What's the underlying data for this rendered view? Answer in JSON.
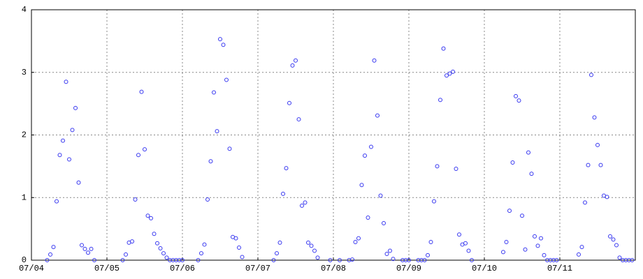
{
  "chart_data": {
    "type": "scatter",
    "x": [
      5,
      6,
      7,
      8,
      9,
      10,
      11,
      12,
      13,
      14,
      15,
      16,
      17,
      18,
      19,
      20,
      29,
      30,
      31,
      32,
      33,
      34,
      35,
      36,
      37,
      38,
      39,
      40,
      41,
      42,
      43,
      44,
      45,
      46,
      47,
      48,
      53,
      54,
      55,
      56,
      57,
      58,
      59,
      60,
      61,
      62,
      63,
      64,
      65,
      66,
      67,
      77,
      78,
      79,
      80,
      81,
      82,
      83,
      84,
      85,
      86,
      87,
      88,
      89,
      90,
      91,
      95,
      98,
      101,
      102,
      103,
      104,
      105,
      106,
      107,
      108,
      109,
      110,
      111,
      112,
      113,
      114,
      115,
      118,
      119,
      120,
      123,
      124,
      125,
      126,
      127,
      128,
      129,
      130,
      131,
      132,
      133,
      134,
      135,
      136,
      137,
      138,
      139,
      140,
      150,
      151,
      152,
      153,
      154,
      155,
      156,
      157,
      158,
      159,
      160,
      161,
      162,
      163,
      164,
      165,
      166,
      167,
      174,
      175,
      176,
      177,
      178,
      179,
      180,
      181,
      182,
      183,
      184,
      185,
      186,
      187,
      188,
      189,
      190,
      191
    ],
    "values": [
      0,
      0.09,
      0.21,
      0.94,
      1.68,
      1.91,
      2.85,
      1.61,
      2.08,
      2.43,
      1.24,
      0.24,
      0.18,
      0.12,
      0.18,
      0,
      0,
      0.09,
      0.28,
      0.3,
      0.97,
      1.68,
      2.69,
      1.77,
      0.71,
      0.67,
      0.42,
      0.27,
      0.19,
      0.11,
      0.04,
      0,
      0,
      0,
      0,
      0,
      0,
      0.11,
      0.25,
      0.97,
      1.58,
      2.68,
      2.06,
      3.53,
      3.44,
      2.88,
      1.78,
      0.37,
      0.35,
      0.2,
      0.05,
      0,
      0.11,
      0.28,
      1.06,
      1.47,
      2.51,
      3.11,
      3.19,
      2.25,
      0.87,
      0.92,
      0.28,
      0.23,
      0.15,
      0.04,
      0,
      0,
      0,
      0.01,
      0.29,
      0.35,
      1.2,
      1.67,
      0.68,
      1.81,
      3.19,
      2.31,
      1.03,
      0.59,
      0.1,
      0.15,
      0.02,
      0,
      0,
      0,
      0,
      0,
      0,
      0.08,
      0.29,
      0.94,
      1.5,
      2.56,
      3.38,
      2.95,
      2.98,
      3.01,
      1.46,
      0.41,
      0.25,
      0.27,
      0.15,
      0,
      0.13,
      0.29,
      0.79,
      1.56,
      2.62,
      2.55,
      0.71,
      0.17,
      1.72,
      1.38,
      0.38,
      0.23,
      0.35,
      0.08,
      0,
      0,
      0,
      0,
      0.09,
      0.21,
      0.92,
      1.52,
      2.96,
      2.28,
      1.84,
      1.52,
      1.03,
      1.01,
      0.38,
      0.33,
      0.24,
      0.04,
      0,
      0,
      0,
      0
    ],
    "color": "#3838f0",
    "xlim": [
      0,
      192
    ],
    "xticks": [
      {
        "value": 0,
        "label": "07/04"
      },
      {
        "value": 24,
        "label": "07/05"
      },
      {
        "value": 48,
        "label": "07/06"
      },
      {
        "value": 72,
        "label": "07/07"
      },
      {
        "value": 96,
        "label": "07/08"
      },
      {
        "value": 120,
        "label": "07/09"
      },
      {
        "value": 144,
        "label": "07/10"
      },
      {
        "value": 168,
        "label": "07/11"
      }
    ],
    "ylim": [
      0,
      4
    ],
    "yticks": [
      0,
      1,
      2,
      3,
      4
    ],
    "grid": true
  }
}
